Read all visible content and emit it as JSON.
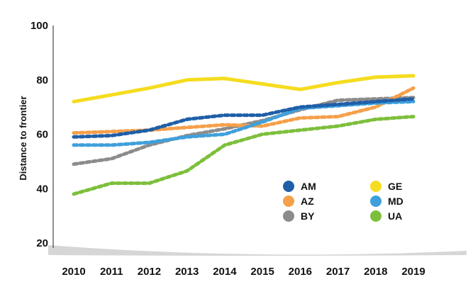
{
  "chart_data": {
    "type": "line",
    "ylabel": "Distance to frontier",
    "xlabel": "",
    "ylim": [
      20,
      100
    ],
    "yticks": [
      20,
      40,
      60,
      80,
      100
    ],
    "x": [
      "2010",
      "2011",
      "2012",
      "2013",
      "2014",
      "2015",
      "2016",
      "2017",
      "2018",
      "2019"
    ],
    "grid": false,
    "legend_placement": "bottom-right",
    "series": [
      {
        "name": "AM",
        "color": "#1f5fa8",
        "style": "dashed",
        "values": [
          59,
          59.5,
          61.5,
          65.5,
          67,
          67,
          70,
          71,
          72,
          73
        ]
      },
      {
        "name": "AZ",
        "color": "#f5a04a",
        "style": "dashed",
        "values": [
          60.5,
          61,
          61.5,
          62.5,
          63.5,
          63,
          66,
          66.5,
          70,
          77
        ]
      },
      {
        "name": "BY",
        "color": "#8c8c8c",
        "style": "dashed",
        "values": [
          49,
          51,
          56,
          59.5,
          62,
          65,
          69,
          72.5,
          73,
          73.5
        ]
      },
      {
        "name": "GE",
        "color": "#f5dc1e",
        "style": "solid",
        "values": [
          72,
          74.5,
          77,
          80,
          80.5,
          78.5,
          76.5,
          79,
          81,
          81.5
        ]
      },
      {
        "name": "MD",
        "color": "#3fa0dc",
        "style": "dashed",
        "values": [
          56,
          56,
          57,
          59,
          60,
          64.5,
          69.5,
          70.5,
          71.5,
          72
        ]
      },
      {
        "name": "UA",
        "color": "#7dbf3c",
        "style": "dashed",
        "values": [
          38,
          42,
          42,
          46.5,
          56,
          60,
          61.5,
          63,
          65.5,
          66.5
        ]
      }
    ]
  }
}
